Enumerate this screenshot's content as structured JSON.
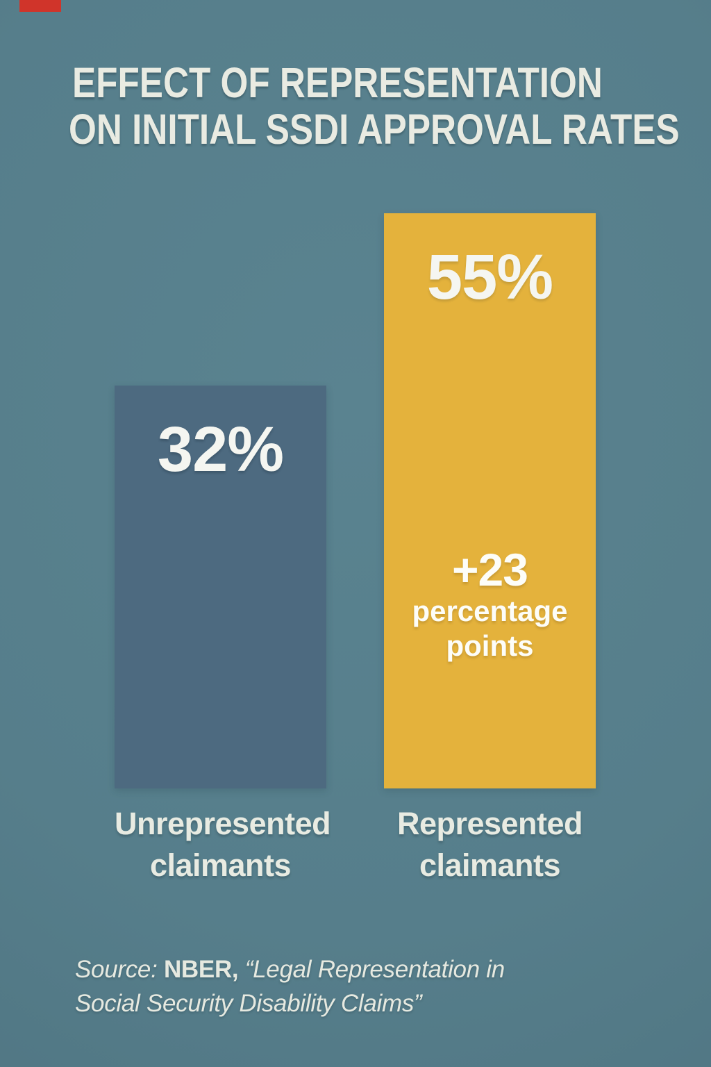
{
  "colors": {
    "background": "#567e8b",
    "bar_unrepresented": "#4d6a80",
    "bar_represented": "#e4b23c",
    "text_offwhite": "#e9ebe2",
    "red_marker": "#d0342a"
  },
  "chart_data": {
    "type": "bar",
    "categories": [
      "Unrepresented claimants",
      "Represented claimants"
    ],
    "values": [
      32,
      55
    ],
    "value_labels": [
      "32%",
      "55%"
    ],
    "series_colors": [
      "#4d6a80",
      "#e4b23c"
    ],
    "title": "EFFECT OF REPRESENTATION ON INITIAL SSDI APPROVAL RATES",
    "annotation": "+23 percentage points",
    "source": "Source: NBER, “Legal Representation in Social Security Disability Claims”",
    "xlabel": "",
    "ylabel": "",
    "ylim": [
      0,
      60
    ],
    "grid": false,
    "legend": false
  },
  "title": {
    "line1": "EFFECT OF REPRESENTATION",
    "line2": "ON INITIAL SSDI APPROVAL RATES"
  },
  "bars": {
    "left": {
      "value_label": "32%",
      "label_line1": "Unrepresented",
      "label_line2": "claimants"
    },
    "right": {
      "value_label": "55%",
      "delta_value": "+23",
      "delta_line1": "percentage",
      "delta_line2": "points",
      "label_line1": "Represented",
      "label_line2": "claimants"
    }
  },
  "source": {
    "prefix": "Source:",
    "org": " NBER, ",
    "title_line1": "“Legal Representation in",
    "title_line2": "Social Security Disability Claims”"
  }
}
